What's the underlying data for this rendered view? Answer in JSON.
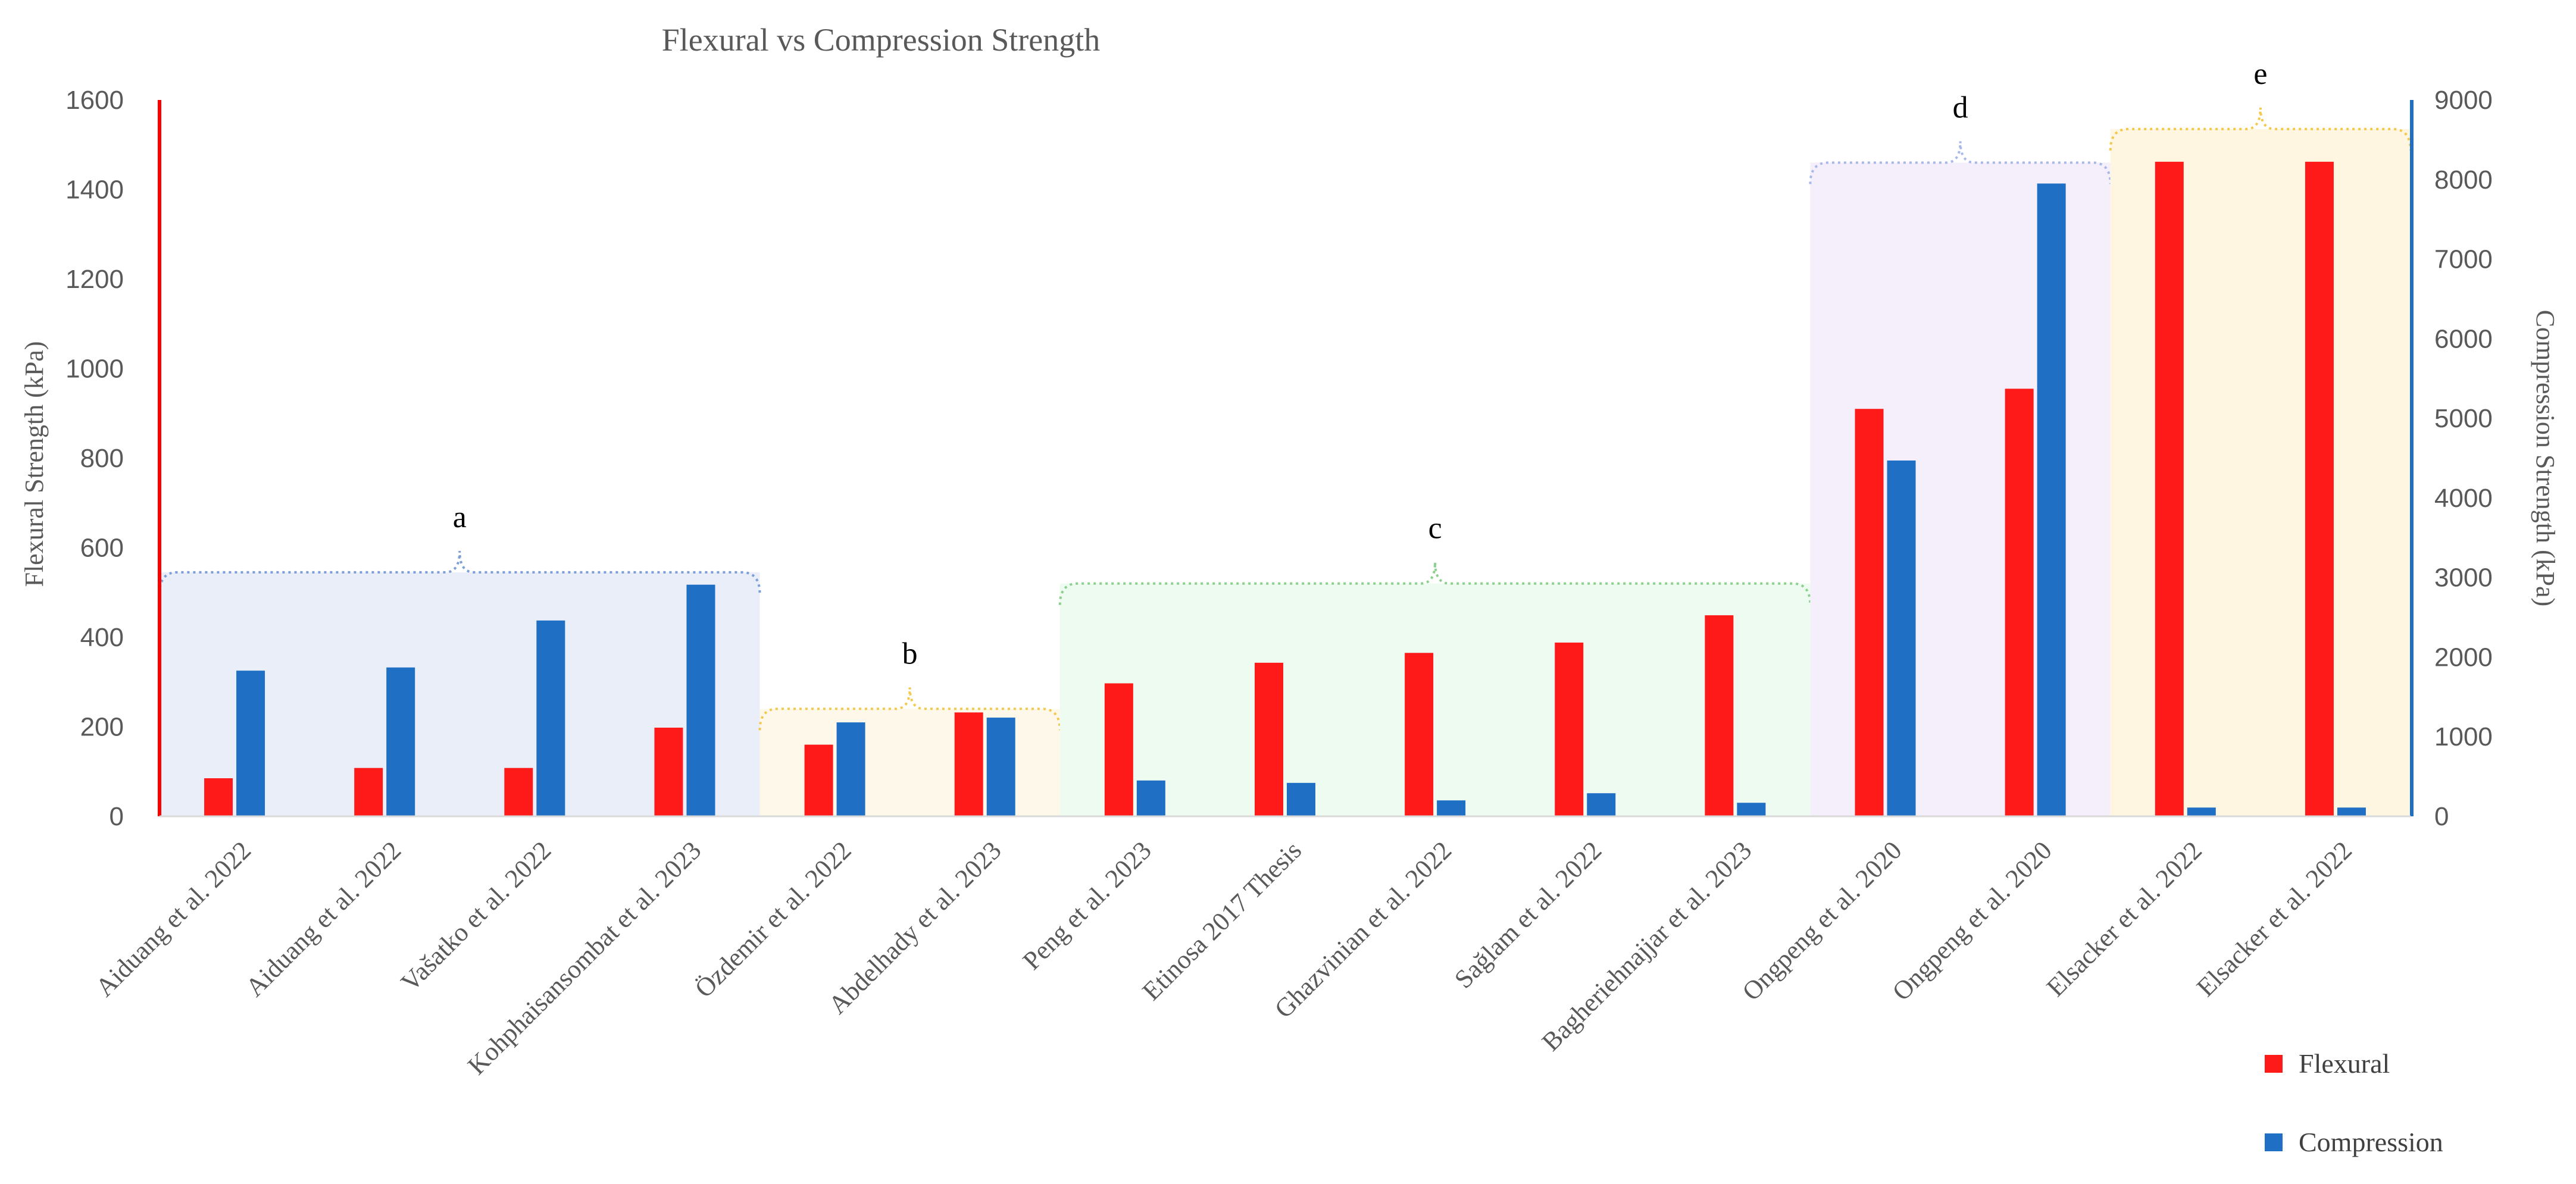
{
  "chart_data": {
    "type": "bar",
    "title": "Flexural vs Compression Strength",
    "ylabel": "Flexural  Strength (kPa)",
    "y2label": "Compression Strength (kPa)",
    "ylim": [
      0,
      1600
    ],
    "y2lim": [
      0,
      9000
    ],
    "yticks": [
      "0",
      "200",
      "400",
      "600",
      "800",
      "1000",
      "1200",
      "1400",
      "1600"
    ],
    "y2ticks": [
      "0",
      "1000",
      "2000",
      "3000",
      "4000",
      "5000",
      "6000",
      "7000",
      "8000",
      "9000"
    ],
    "categories": [
      "Aiduang et al.  2022",
      "Aiduang et al.  2022",
      "Vašatko et al. 2022",
      "Kohphaisansombat et al. 2023",
      "Özdemir et al. 2022",
      "Abdelhady et al. 2023",
      "Peng et al. 2023",
      "Etinosa 2017 Thesis",
      "Ghazvinian et al. 2022",
      "Sağlam et al. 2022",
      "Bagheriehnajjar et al. 2023",
      "Ongpeng  et al. 2020",
      "Ongpeng  et al. 2020",
      "Elsacker et al. 2022",
      "Elsacker et al. 2022"
    ],
    "series": [
      {
        "name": "Flexural",
        "axis": "left",
        "color": "#FF1A1A",
        "values": [
          85,
          108,
          108,
          198,
          160,
          232,
          297,
          343,
          365,
          388,
          449,
          910,
          955,
          1462,
          1462
        ]
      },
      {
        "name": "Compression",
        "axis": "right",
        "color": "#1F6FC5",
        "values": [
          1830,
          1870,
          2460,
          2910,
          1180,
          1240,
          450,
          420,
          200,
          290,
          170,
          4470,
          7950,
          110,
          110
        ]
      }
    ],
    "groups": [
      {
        "label": "a",
        "from": 0,
        "to": 3,
        "fill": "#E9EEF8",
        "stroke": "#7B9FD6"
      },
      {
        "label": "b",
        "from": 4,
        "to": 5,
        "fill": "#FEF8EA",
        "stroke": "#F2C94C"
      },
      {
        "label": "c",
        "from": 6,
        "to": 10,
        "fill": "#EEFBF0",
        "stroke": "#8BD08B"
      },
      {
        "label": "d",
        "from": 11,
        "to": 12,
        "fill": "#F4EFFB",
        "stroke": "#A9B8E8"
      },
      {
        "label": "e",
        "from": 13,
        "to": 14,
        "fill": "#FEF6E1",
        "stroke": "#F2C94C"
      }
    ],
    "legend": {
      "position": "bottom-right"
    }
  }
}
